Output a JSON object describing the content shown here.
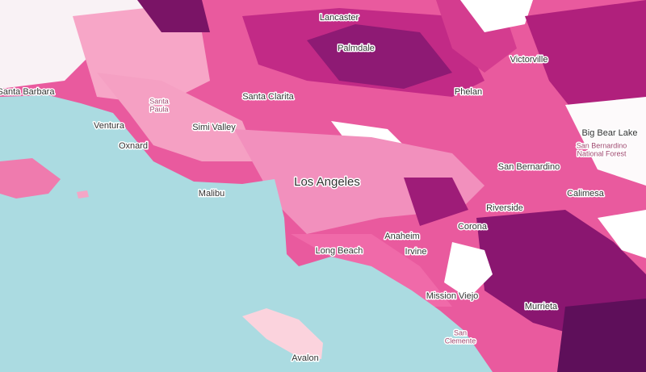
{
  "labels": {
    "lancaster": "Lancaster",
    "palmdale": "Palmdale",
    "victorville": "Victorville",
    "santa_barbara": "Santa Barbara",
    "santa_clarita": "Santa Clarita",
    "santa_paula": [
      "Santa",
      "Paula"
    ],
    "ventura": "Ventura",
    "simi_valley": "Simi Valley",
    "oxnard": "Oxnard",
    "phelan": "Phelan",
    "big_bear_lake": "Big Bear Lake",
    "sbnf": [
      "San Bernardino",
      "National Forest"
    ],
    "san_bernardino": "San Bernardino",
    "los_angeles": "Los Angeles",
    "malibu": "Malibu",
    "calimesa": "Calimesa",
    "riverside": "Riverside",
    "anaheim": "Anaheim",
    "corona": "Corona",
    "long_beach": "Long Beach",
    "irvine": "Irvine",
    "mission_viejo": "Mission Viejo",
    "murrieta": "Murrieta",
    "san_clemente": [
      "San",
      "Clemente"
    ],
    "avalon": "Avalon"
  }
}
